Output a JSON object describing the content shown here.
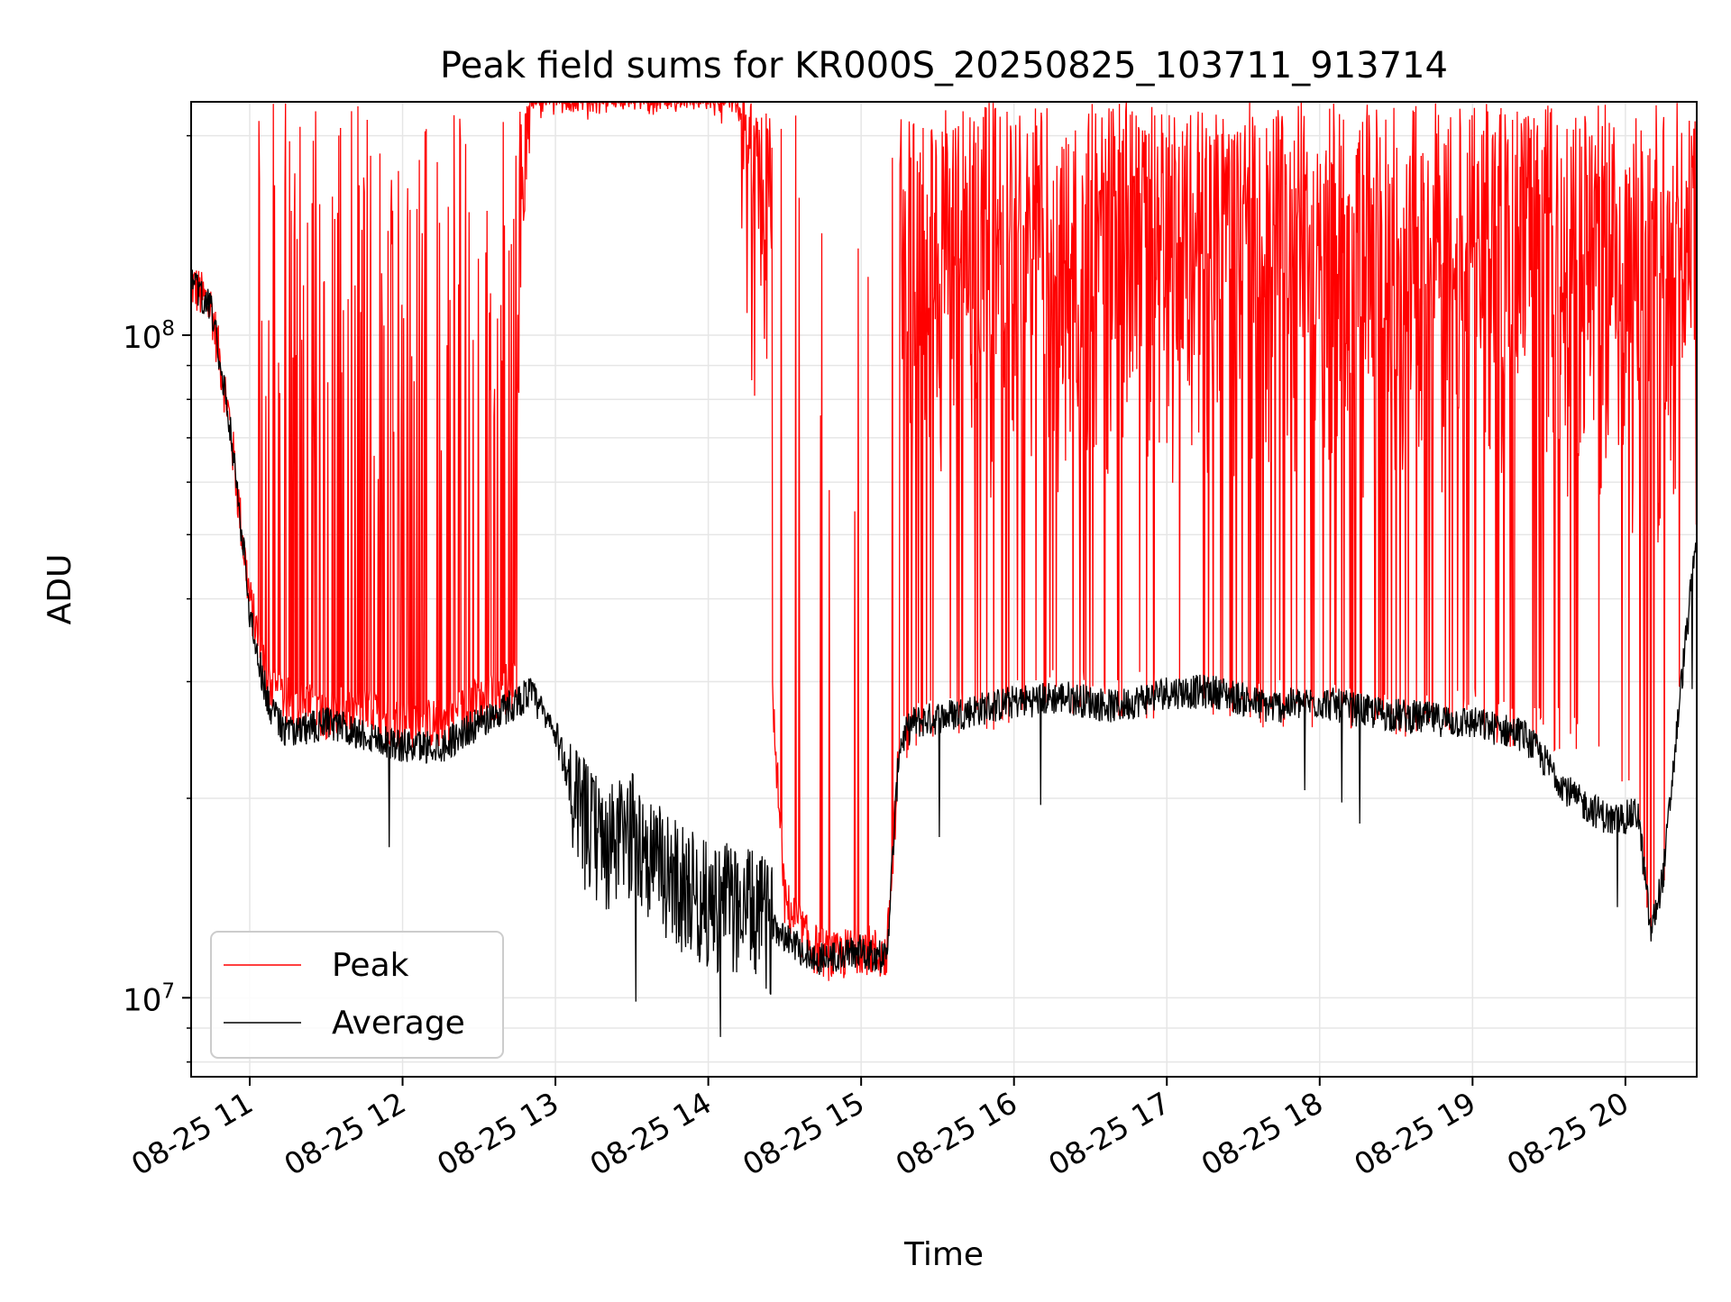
{
  "chart_data": {
    "type": "line",
    "title": "Peak field sums for KR000S_20250825_103711_913714",
    "xlabel": "Time",
    "ylabel": "ADU",
    "yscale": "log",
    "xlim": [
      "08-25 10:37",
      "08-25 20:28"
    ],
    "ylim": [
      7600000,
      225000000
    ],
    "x_ticks": [
      {
        "label": "08-25 11",
        "hour": 11
      },
      {
        "label": "08-25 12",
        "hour": 12
      },
      {
        "label": "08-25 13",
        "hour": 13
      },
      {
        "label": "08-25 14",
        "hour": 14
      },
      {
        "label": "08-25 15",
        "hour": 15
      },
      {
        "label": "08-25 16",
        "hour": 16
      },
      {
        "label": "08-25 17",
        "hour": 17
      },
      {
        "label": "08-25 18",
        "hour": 18
      },
      {
        "label": "08-25 19",
        "hour": 19
      },
      {
        "label": "08-25 20",
        "hour": 20
      }
    ],
    "y_ticks": [
      {
        "base": "10",
        "exp": "7",
        "value": 10000000
      },
      {
        "base": "10",
        "exp": "8",
        "value": 100000000
      }
    ],
    "grid": true,
    "legend": {
      "position": "lower-left"
    },
    "series": [
      {
        "name": "Peak",
        "color": "#ff0000",
        "x": [
          "10:37",
          "10:45",
          "10:52",
          "10:57",
          "11:00",
          "11:07",
          "11:15",
          "11:30",
          "11:45",
          "12:00",
          "12:15",
          "12:30",
          "12:45",
          "12:50",
          "13:00",
          "13:10",
          "13:20",
          "13:30",
          "13:40",
          "13:50",
          "14:00",
          "14:10",
          "14:20",
          "14:30",
          "14:40",
          "14:50",
          "15:00",
          "15:10",
          "15:15",
          "15:20",
          "15:40",
          "16:00",
          "16:20",
          "16:40",
          "17:00",
          "17:20",
          "17:40",
          "18:00",
          "18:20",
          "18:40",
          "19:00",
          "19:20",
          "19:40",
          "19:55",
          "20:05",
          "20:10",
          "20:15",
          "20:22",
          "20:28"
        ],
        "values": [
          120000000,
          110000000,
          75000000,
          50000000,
          40000000,
          30000000,
          28000000,
          27000000,
          27000000,
          26000000,
          26000000,
          28000000,
          30000000,
          225000000,
          225000000,
          225000000,
          225000000,
          225000000,
          225000000,
          225000000,
          225000000,
          225000000,
          60000000,
          14000000,
          12000000,
          11500000,
          12000000,
          11500000,
          24000000,
          26000000,
          27000000,
          28000000,
          29000000,
          28000000,
          29000000,
          29000000,
          28000000,
          28000000,
          27000000,
          27000000,
          27000000,
          26000000,
          25000000,
          22000000,
          20000000,
          13000000,
          16000000,
          30000000,
          50000000
        ],
        "spike_max": 225000000,
        "spike_windows": [
          [
            "11:02",
            "12:45"
          ],
          [
            "12:45",
            "14:25"
          ],
          [
            "14:25",
            "15:15"
          ],
          [
            "15:15",
            "20:28"
          ]
        ],
        "spike_density": [
          0.25,
          0.95,
          0.05,
          0.9
        ]
      },
      {
        "name": "Average",
        "color": "#000000",
        "x": [
          "10:37",
          "10:45",
          "10:52",
          "10:57",
          "11:00",
          "11:07",
          "11:15",
          "11:30",
          "11:45",
          "12:00",
          "12:15",
          "12:30",
          "12:45",
          "12:50",
          "13:00",
          "13:10",
          "13:20",
          "13:30",
          "13:40",
          "13:50",
          "14:00",
          "14:10",
          "14:20",
          "14:30",
          "14:40",
          "14:50",
          "15:00",
          "15:10",
          "15:15",
          "15:20",
          "15:40",
          "16:00",
          "16:20",
          "16:40",
          "17:00",
          "17:20",
          "17:40",
          "18:00",
          "18:20",
          "18:40",
          "19:00",
          "19:20",
          "19:40",
          "19:55",
          "20:05",
          "20:10",
          "20:15",
          "20:22",
          "20:28"
        ],
        "values": [
          120000000,
          110000000,
          75000000,
          50000000,
          38000000,
          28000000,
          25000000,
          26000000,
          25000000,
          24000000,
          24000000,
          26000000,
          28000000,
          29000000,
          25000000,
          19000000,
          17000000,
          18000000,
          16000000,
          15000000,
          14000000,
          14000000,
          13500000,
          12500000,
          11500000,
          11500000,
          11800000,
          11500000,
          24000000,
          26000000,
          27000000,
          28000000,
          28500000,
          27500000,
          29000000,
          29000000,
          27500000,
          28000000,
          27000000,
          26500000,
          26000000,
          25000000,
          20000000,
          18500000,
          19000000,
          12500000,
          15500000,
          30000000,
          50000000
        ]
      }
    ]
  }
}
